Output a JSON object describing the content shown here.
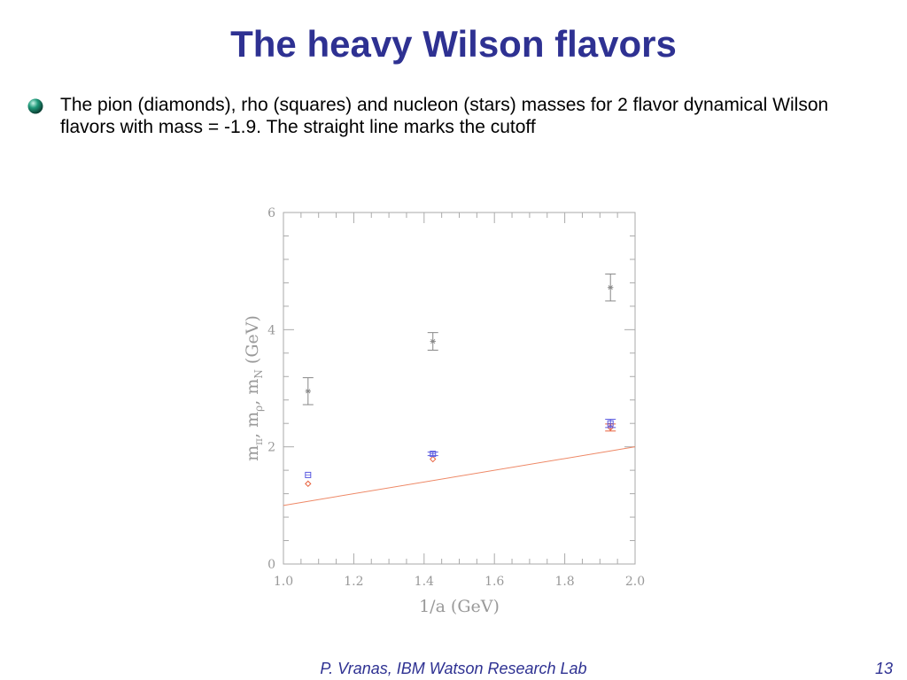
{
  "slide": {
    "title": "The heavy Wilson flavors",
    "bullet": "The pion (diamonds), rho (squares) and nucleon (stars) masses for 2 flavor dynamical Wilson flavors with mass = -1.9. The straight line marks the cutoff",
    "footer": "P. Vranas, IBM Watson Research Lab",
    "page_number": "13",
    "bullet_icon": "green-sphere-icon"
  },
  "chart_data": {
    "type": "scatter",
    "title": "",
    "xlabel": "1/a (GeV)",
    "ylabel": "m_π, m_ρ, m_N (GeV)",
    "ylabel_parts": {
      "m1": "m",
      "sub1": "π",
      "m2": "m",
      "sub2": "ρ",
      "m3": "m",
      "sub3": "N",
      "unit": "(GeV)"
    },
    "xlim": [
      1.0,
      2.0
    ],
    "ylim": [
      0,
      6
    ],
    "x_ticks": [
      "1.0",
      "1.2",
      "1.4",
      "1.6",
      "1.8",
      "2.0"
    ],
    "y_ticks": [
      "0",
      "2",
      "4",
      "6"
    ],
    "colors": {
      "pion": "#e8603c",
      "rho": "#5a5ae0",
      "nucleon": "#888888",
      "cutoff": "#ee8866",
      "axis": "#aaaaaa"
    },
    "series": [
      {
        "marker": "diamond",
        "points": [
          {
            "x": 1.07,
            "y": 1.37,
            "err": 0.02
          },
          {
            "x": 1.425,
            "y": 1.79,
            "err": 0.02
          },
          {
            "x": 1.93,
            "y": 2.33,
            "err": 0.06
          }
        ]
      },
      {
        "marker": "square",
        "points": [
          {
            "x": 1.07,
            "y": 1.52,
            "err": 0.02
          },
          {
            "x": 1.425,
            "y": 1.88,
            "err": 0.03
          },
          {
            "x": 1.93,
            "y": 2.4,
            "err": 0.07
          }
        ]
      },
      {
        "marker": "star",
        "points": [
          {
            "x": 1.07,
            "y": 2.95,
            "err": 0.23
          },
          {
            "x": 1.425,
            "y": 3.8,
            "err": 0.15
          },
          {
            "x": 1.93,
            "y": 4.72,
            "err": 0.23
          }
        ]
      }
    ],
    "cutoff_line": {
      "x": [
        1.0,
        2.0
      ],
      "y": [
        1.0,
        2.0
      ]
    }
  }
}
